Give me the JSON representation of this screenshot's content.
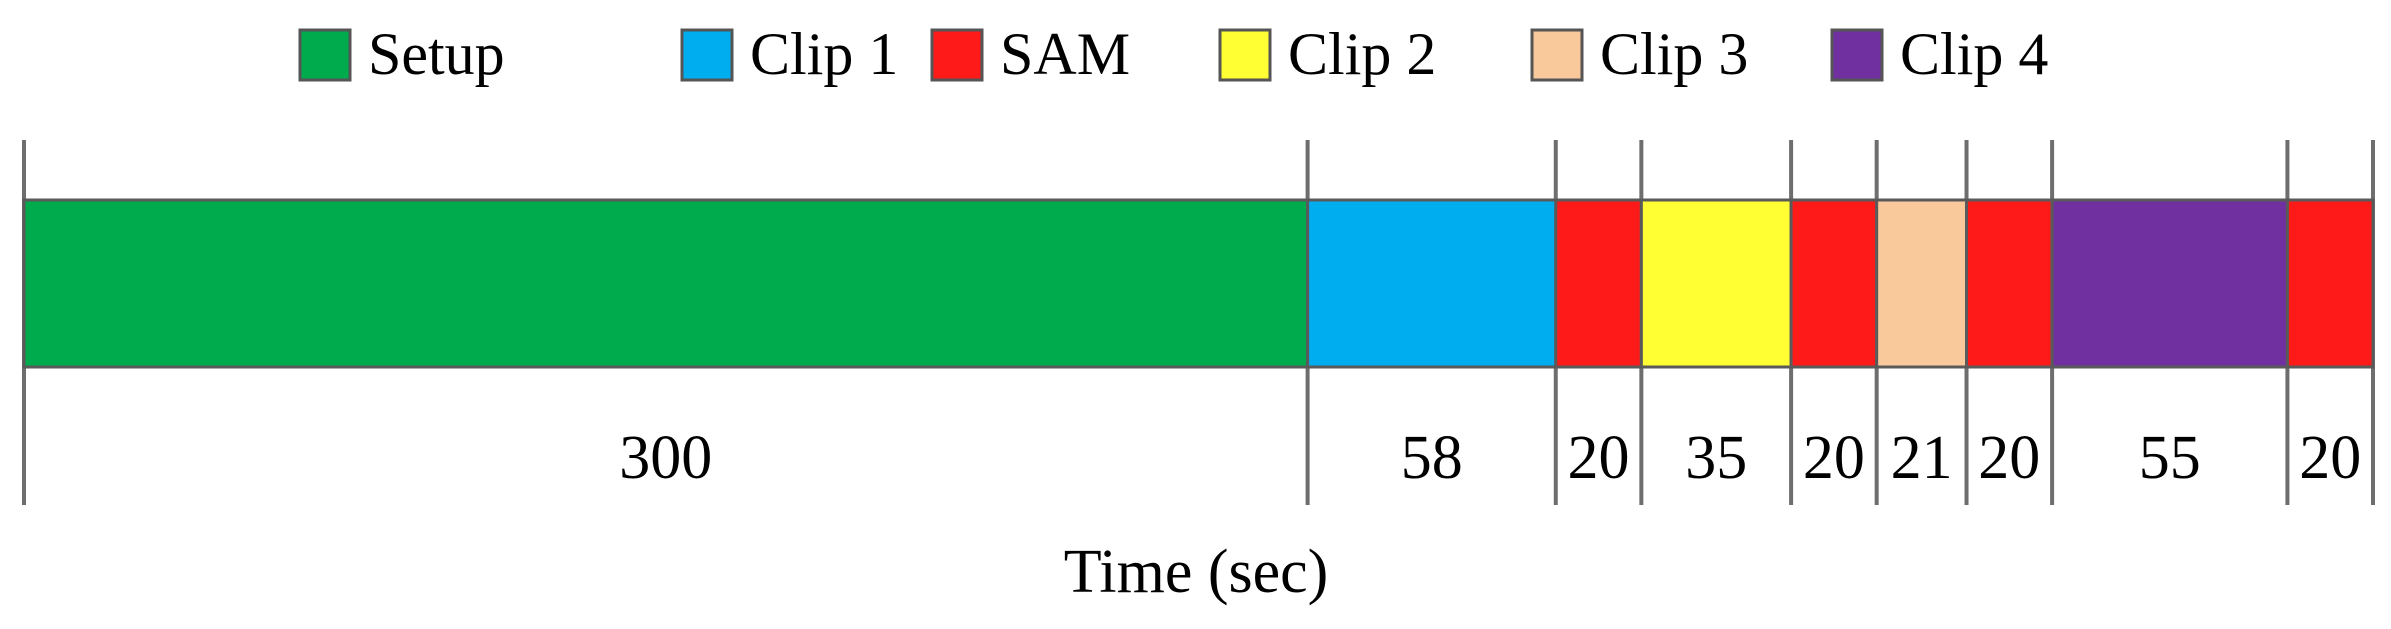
{
  "chart_data": {
    "type": "bar",
    "orientation": "horizontal-stacked",
    "legend": [
      {
        "name": "Setup",
        "color": "#00AB4E"
      },
      {
        "name": "Clip 1",
        "color": "#00AEEF"
      },
      {
        "name": "SAM",
        "color": "#FF1A1A"
      },
      {
        "name": "Clip 2",
        "color": "#FFFF33"
      },
      {
        "name": "Clip 3",
        "color": "#F9C89B"
      },
      {
        "name": "Clip 4",
        "color": "#7030A0"
      }
    ],
    "legend_position": "top",
    "segments": [
      {
        "series": "Setup",
        "value": 300
      },
      {
        "series": "Clip 1",
        "value": 58
      },
      {
        "series": "SAM",
        "value": 20
      },
      {
        "series": "Clip 2",
        "value": 35
      },
      {
        "series": "SAM",
        "value": 20
      },
      {
        "series": "Clip 3",
        "value": 21
      },
      {
        "series": "SAM",
        "value": 20
      },
      {
        "series": "Clip 4",
        "value": 55
      },
      {
        "series": "SAM",
        "value": 20
      }
    ],
    "xlabel": "Time (sec)"
  }
}
